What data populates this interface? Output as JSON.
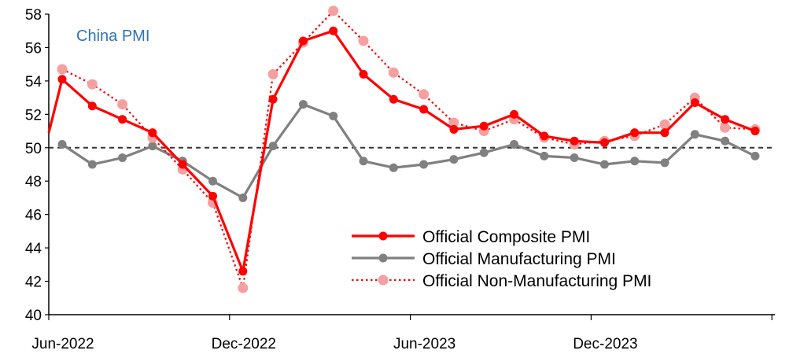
{
  "chart_data": {
    "type": "line",
    "title": "China PMI",
    "xlabel": "",
    "ylabel": "",
    "ylim": [
      40,
      58
    ],
    "y_ticks": [
      40,
      42,
      44,
      46,
      48,
      50,
      52,
      54,
      56,
      58
    ],
    "reference_line": 50,
    "x_tick_labels": [
      "Jun-2022",
      "Dec-2022",
      "Jun-2023",
      "Dec-2023"
    ],
    "categories": [
      "May-2022",
      "Jun-2022",
      "Jul-2022",
      "Aug-2022",
      "Sep-2022",
      "Oct-2022",
      "Nov-2022",
      "Dec-2022",
      "Jan-2023",
      "Feb-2023",
      "Mar-2023",
      "Apr-2023",
      "May-2023",
      "Jun-2023",
      "Jul-2023",
      "Aug-2023",
      "Sep-2023",
      "Oct-2023",
      "Nov-2023",
      "Dec-2023",
      "Jan-2024",
      "Feb-2024",
      "Mar-2024",
      "Apr-2024",
      "May-2024"
    ],
    "grid": false,
    "legend_position": "bottom-right",
    "series": [
      {
        "name": "Official Composite PMI",
        "style": "solid-markers",
        "color": "#ff0000",
        "values": [
          null,
          54.1,
          52.5,
          51.7,
          50.9,
          49.0,
          47.1,
          42.6,
          52.9,
          56.4,
          57.0,
          54.4,
          52.9,
          52.3,
          51.1,
          51.3,
          52.0,
          50.7,
          50.4,
          50.3,
          50.9,
          50.9,
          52.7,
          51.7,
          51.0
        ]
      },
      {
        "name": "Official Manufacturing PMI",
        "style": "solid-markers",
        "color": "#808080",
        "values": [
          null,
          50.2,
          49.0,
          49.4,
          50.1,
          49.2,
          48.0,
          47.0,
          50.1,
          52.6,
          51.9,
          49.2,
          48.8,
          49.0,
          49.3,
          49.7,
          50.2,
          49.5,
          49.4,
          49.0,
          49.2,
          49.1,
          50.8,
          50.4,
          49.5
        ]
      },
      {
        "name": "Official Non-Manufacturing PMI",
        "style": "dotted-markers",
        "color": "#ff0000",
        "marker_color": "#f4a0a0",
        "values": [
          null,
          54.7,
          53.8,
          52.6,
          50.6,
          48.7,
          46.7,
          41.6,
          54.4,
          56.3,
          58.2,
          56.4,
          54.5,
          53.2,
          51.5,
          51.0,
          51.7,
          50.6,
          50.2,
          50.4,
          50.7,
          51.4,
          53.0,
          51.2,
          51.1
        ]
      }
    ]
  }
}
